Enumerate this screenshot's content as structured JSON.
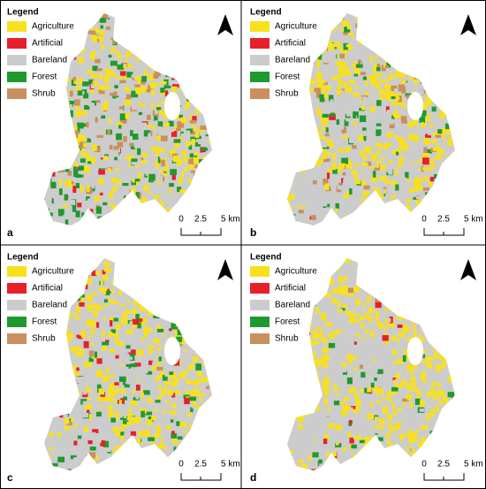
{
  "legend": {
    "title": "Legend",
    "items": [
      {
        "label": "Agriculture",
        "color": "#f7e11e"
      },
      {
        "label": "Artificial",
        "color": "#e8202a"
      },
      {
        "label": "Bareland",
        "color": "#cccccc"
      },
      {
        "label": "Forest",
        "color": "#1e9a2e"
      },
      {
        "label": "Shrub",
        "color": "#c98f5e"
      }
    ]
  },
  "scale_bar": {
    "labels": [
      "0",
      "2.5",
      "5 km"
    ]
  },
  "panels": [
    {
      "label": "a"
    },
    {
      "label": "b"
    },
    {
      "label": "c"
    },
    {
      "label": "d"
    }
  ]
}
